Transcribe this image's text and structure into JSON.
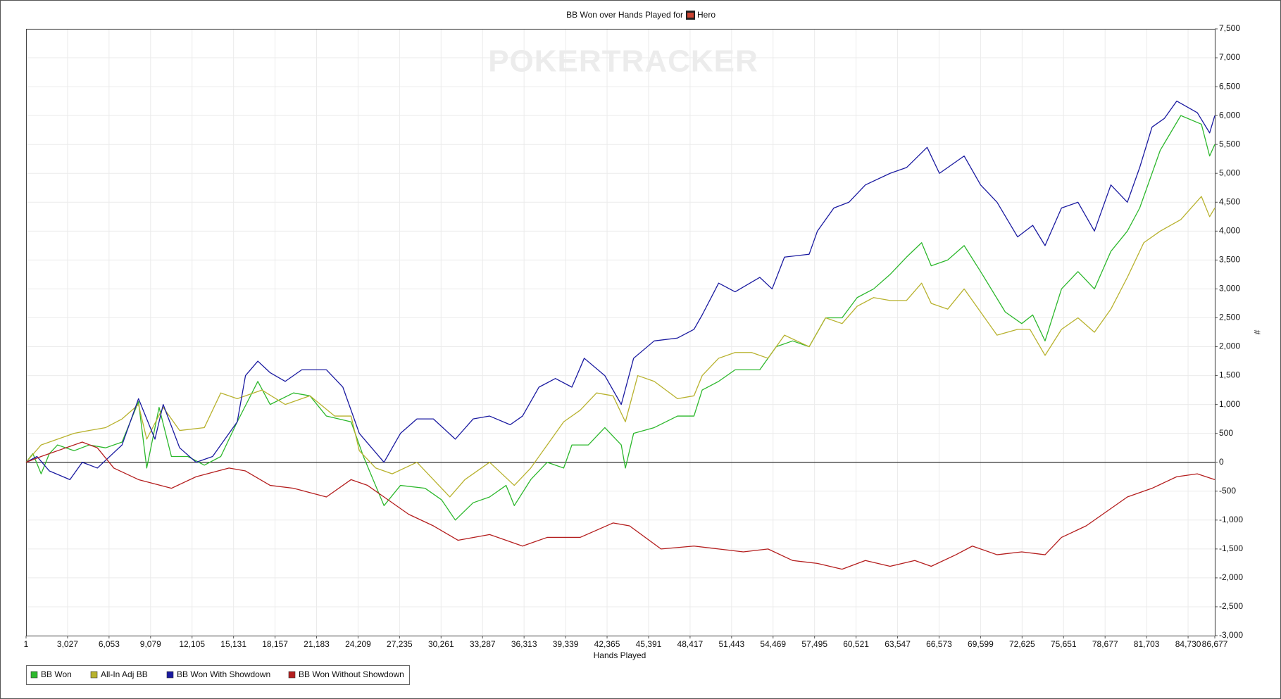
{
  "chart_data": {
    "type": "line",
    "title": "BB Won over Hands Played for",
    "player": "Hero",
    "watermark": "POKERTRACKER",
    "x_label": "Hands Played",
    "y_label": "#",
    "xlim": [
      1,
      86677
    ],
    "ylim": [
      -3000,
      7500
    ],
    "xticks": [
      1,
      {
        "value": 3027,
        "label": "3,027"
      },
      {
        "value": 6053,
        "label": "6,053"
      },
      {
        "value": 9079,
        "label": "9,079"
      },
      {
        "value": 12105,
        "label": "12,105"
      },
      {
        "value": 15131,
        "label": "15,131"
      },
      {
        "value": 18157,
        "label": "18,157"
      },
      {
        "value": 21183,
        "label": "21,183"
      },
      {
        "value": 24209,
        "label": "24,209"
      },
      {
        "value": 27235,
        "label": "27,235"
      },
      {
        "value": 30261,
        "label": "30,261"
      },
      {
        "value": 33287,
        "label": "33,287"
      },
      {
        "value": 36313,
        "label": "36,313"
      },
      {
        "value": 39339,
        "label": "39,339"
      },
      {
        "value": 42365,
        "label": "42,365"
      },
      {
        "value": 45391,
        "label": "45,391"
      },
      {
        "value": 48417,
        "label": "48,417"
      },
      {
        "value": 51443,
        "label": "51,443"
      },
      {
        "value": 54469,
        "label": "54,469"
      },
      {
        "value": 57495,
        "label": "57,495"
      },
      {
        "value": 60521,
        "label": "60,521"
      },
      {
        "value": 63547,
        "label": "63,547"
      },
      {
        "value": 66573,
        "label": "66,573"
      },
      {
        "value": 69599,
        "label": "69,599"
      },
      {
        "value": 72625,
        "label": "72,625"
      },
      {
        "value": 75651,
        "label": "75,651"
      },
      {
        "value": 78677,
        "label": "78,677"
      },
      {
        "value": 81703,
        "label": "81,703"
      },
      {
        "value": 84730,
        "label": "84,730"
      },
      {
        "value": 86677,
        "label": "86,677"
      }
    ],
    "yticks": [
      {
        "value": -3000,
        "label": "-3,000"
      },
      {
        "value": -2500,
        "label": "-2,500"
      },
      {
        "value": -2000,
        "label": "-2,000"
      },
      {
        "value": -1500,
        "label": "-1,500"
      },
      {
        "value": -1000,
        "label": "-1,000"
      },
      -500,
      0,
      500,
      {
        "value": 1000,
        "label": "1,000"
      },
      {
        "value": 1500,
        "label": "1,500"
      },
      {
        "value": 2000,
        "label": "2,000"
      },
      {
        "value": 2500,
        "label": "2,500"
      },
      {
        "value": 3000,
        "label": "3,000"
      },
      {
        "value": 3500,
        "label": "3,500"
      },
      {
        "value": 4000,
        "label": "4,000"
      },
      {
        "value": 4500,
        "label": "4,500"
      },
      {
        "value": 5000,
        "label": "5,000"
      },
      {
        "value": 5500,
        "label": "5,500"
      },
      {
        "value": 6000,
        "label": "6,000"
      },
      {
        "value": 6500,
        "label": "6,500"
      },
      {
        "value": 7000,
        "label": "7,000"
      },
      {
        "value": 7500,
        "label": "7,500"
      }
    ],
    "grid": true,
    "legend": "bottom-left",
    "series": [
      {
        "name": "BB Won",
        "color": "#2db82d",
        "x": [
          1,
          500,
          1100,
          1700,
          2300,
          3500,
          4600,
          5800,
          7000,
          8200,
          8800,
          9700,
          10600,
          11800,
          13000,
          14200,
          15400,
          16900,
          17800,
          19500,
          20700,
          21900,
          23700,
          24600,
          26100,
          27300,
          29100,
          30300,
          31300,
          32600,
          33800,
          35000,
          35600,
          36800,
          38000,
          39200,
          39800,
          41000,
          42200,
          43400,
          43700,
          44300,
          45800,
          47500,
          48700,
          49300,
          50500,
          51700,
          53500,
          54700,
          55900,
          57100,
          58300,
          59500,
          60600,
          61800,
          63000,
          64200,
          65300,
          66000,
          67200,
          68400,
          69600,
          71400,
          72600,
          73400,
          74300,
          75500,
          76700,
          77900,
          79100,
          80300,
          81200,
          82700,
          84200,
          85700,
          86300,
          86677
        ],
        "values": [
          0,
          150,
          -200,
          150,
          300,
          200,
          300,
          250,
          350,
          1050,
          -100,
          950,
          100,
          100,
          -50,
          100,
          700,
          1400,
          1000,
          1200,
          1150,
          800,
          700,
          100,
          -750,
          -400,
          -450,
          -650,
          -1000,
          -700,
          -600,
          -400,
          -750,
          -300,
          0,
          -100,
          300,
          300,
          600,
          300,
          -100,
          500,
          600,
          800,
          800,
          1250,
          1400,
          1600,
          1600,
          2000,
          2100,
          2000,
          2500,
          2500,
          2850,
          3000,
          3250,
          3550,
          3800,
          3400,
          3500,
          3750,
          3300,
          2600,
          2400,
          2550,
          2100,
          3000,
          3300,
          3000,
          3650,
          4000,
          4400,
          5400,
          6000,
          5850,
          5300,
          5500
        ]
      },
      {
        "name": "All-In Adj BB",
        "color": "#b8b22e",
        "x": [
          1,
          1100,
          2300,
          3500,
          4600,
          5800,
          7000,
          8200,
          8800,
          10000,
          11200,
          13000,
          14200,
          15400,
          17200,
          18900,
          20700,
          22500,
          23700,
          24300,
          25500,
          26700,
          28500,
          29700,
          30900,
          32000,
          33800,
          35600,
          36800,
          38000,
          39200,
          40400,
          41600,
          42800,
          43700,
          44600,
          45800,
          47500,
          48700,
          49300,
          50500,
          51700,
          52900,
          54100,
          55300,
          57100,
          58300,
          59500,
          60600,
          61800,
          63000,
          64200,
          65300,
          66000,
          67200,
          68400,
          69600,
          70800,
          72300,
          73200,
          74300,
          75500,
          76700,
          77900,
          79100,
          80300,
          81500,
          82700,
          84200,
          85700,
          86300,
          86677
        ],
        "values": [
          0,
          300,
          400,
          500,
          550,
          600,
          750,
          1000,
          400,
          950,
          550,
          600,
          1200,
          1100,
          1250,
          1000,
          1150,
          800,
          800,
          200,
          -100,
          -200,
          0,
          -300,
          -600,
          -300,
          0,
          -400,
          -100,
          300,
          700,
          900,
          1200,
          1150,
          700,
          1500,
          1400,
          1100,
          1150,
          1500,
          1800,
          1900,
          1900,
          1800,
          2200,
          2000,
          2500,
          2400,
          2700,
          2850,
          2800,
          2800,
          3100,
          2750,
          2650,
          3000,
          2600,
          2200,
          2300,
          2300,
          1850,
          2300,
          2500,
          2250,
          2650,
          3200,
          3800,
          4000,
          4200,
          4600,
          4250,
          4400
        ]
      },
      {
        "name": "BB Won With Showdown",
        "color": "#1a1aa0",
        "x": [
          1,
          800,
          1700,
          3200,
          4100,
          5200,
          7000,
          8200,
          9400,
          10000,
          11200,
          12400,
          13600,
          15400,
          16000,
          16900,
          17800,
          18900,
          20100,
          21900,
          23100,
          24300,
          26100,
          27300,
          28500,
          29700,
          31300,
          32600,
          33800,
          35300,
          36200,
          37400,
          38600,
          39800,
          40700,
          42200,
          43400,
          44300,
          45800,
          47500,
          48700,
          49300,
          50500,
          51700,
          53500,
          54400,
          55300,
          57100,
          57700,
          58900,
          60000,
          61200,
          63000,
          64200,
          65700,
          66600,
          68400,
          69600,
          70800,
          72300,
          73400,
          74300,
          75500,
          76700,
          77900,
          79100,
          80300,
          81200,
          82100,
          83000,
          83900,
          85400,
          86300,
          86677
        ],
        "values": [
          0,
          100,
          -150,
          -300,
          0,
          -100,
          300,
          1100,
          400,
          1000,
          250,
          0,
          100,
          700,
          1500,
          1750,
          1550,
          1400,
          1600,
          1600,
          1300,
          500,
          0,
          500,
          750,
          750,
          400,
          750,
          800,
          650,
          800,
          1300,
          1450,
          1300,
          1800,
          1500,
          1000,
          1800,
          2100,
          2150,
          2300,
          2550,
          3100,
          2950,
          3200,
          3000,
          3550,
          3600,
          4000,
          4400,
          4500,
          4800,
          5000,
          5100,
          5450,
          5000,
          5300,
          4800,
          4500,
          3900,
          4100,
          3750,
          4400,
          4500,
          4000,
          4800,
          4500,
          5100,
          5800,
          5950,
          6250,
          6050,
          5700,
          6000
        ]
      },
      {
        "name": "BB Won Without Showdown",
        "color": "#b41e1e",
        "x": [
          1,
          1100,
          2900,
          4100,
          5200,
          6400,
          8200,
          10600,
          12400,
          14800,
          16000,
          17800,
          19500,
          21900,
          23700,
          24900,
          26100,
          27900,
          29700,
          31500,
          33800,
          36200,
          38000,
          40400,
          42800,
          44000,
          46300,
          48700,
          50500,
          52300,
          54100,
          55900,
          57700,
          59500,
          61200,
          63000,
          64800,
          66000,
          67800,
          69000,
          70800,
          72600,
          74300,
          75500,
          77300,
          78500,
          80300,
          82100,
          83900,
          85400,
          86677
        ],
        "values": [
          0,
          100,
          250,
          350,
          250,
          -100,
          -300,
          -450,
          -250,
          -100,
          -150,
          -400,
          -450,
          -600,
          -300,
          -400,
          -600,
          -900,
          -1100,
          -1350,
          -1250,
          -1450,
          -1300,
          -1300,
          -1050,
          -1100,
          -1500,
          -1450,
          -1500,
          -1550,
          -1500,
          -1700,
          -1750,
          -1850,
          -1700,
          -1800,
          -1700,
          -1800,
          -1600,
          -1450,
          -1600,
          -1550,
          -1600,
          -1300,
          -1100,
          -900,
          -600,
          -450,
          -250,
          -200,
          -300
        ]
      }
    ]
  }
}
